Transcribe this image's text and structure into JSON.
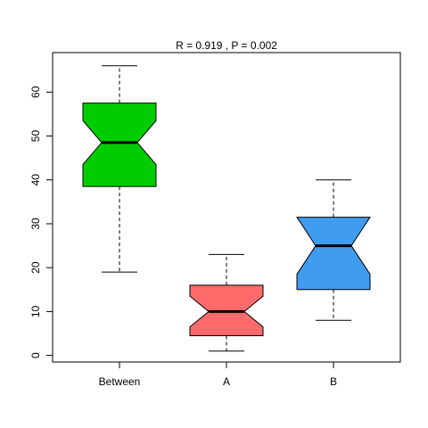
{
  "chart_data": {
    "type": "boxplot",
    "title": "R =  0.919 ,  P =  0.002",
    "xlabel": "",
    "ylabel": "",
    "ylim": [
      -1.5,
      69
    ],
    "yticks": [
      0,
      10,
      20,
      30,
      40,
      50,
      60
    ],
    "notched": true,
    "grid": false,
    "categories": [
      "Between",
      "A",
      "B"
    ],
    "boxes": [
      {
        "label": "Between",
        "min": 19,
        "q1": 38.5,
        "median": 48.5,
        "q3": 57.5,
        "max": 66,
        "notch_low": 43.5,
        "notch_high": 53.5,
        "color": "#00CD00"
      },
      {
        "label": "A",
        "min": 1,
        "q1": 4.5,
        "median": 10,
        "q3": 16,
        "max": 23,
        "notch_low": 6.5,
        "notch_high": 13.5,
        "color": "#FF6B6B"
      },
      {
        "label": "B",
        "min": 8,
        "q1": 15,
        "median": 25,
        "q3": 31.5,
        "max": 40,
        "notch_low": 18.5,
        "notch_high": 31.5,
        "color": "#3F9CEF"
      }
    ]
  }
}
